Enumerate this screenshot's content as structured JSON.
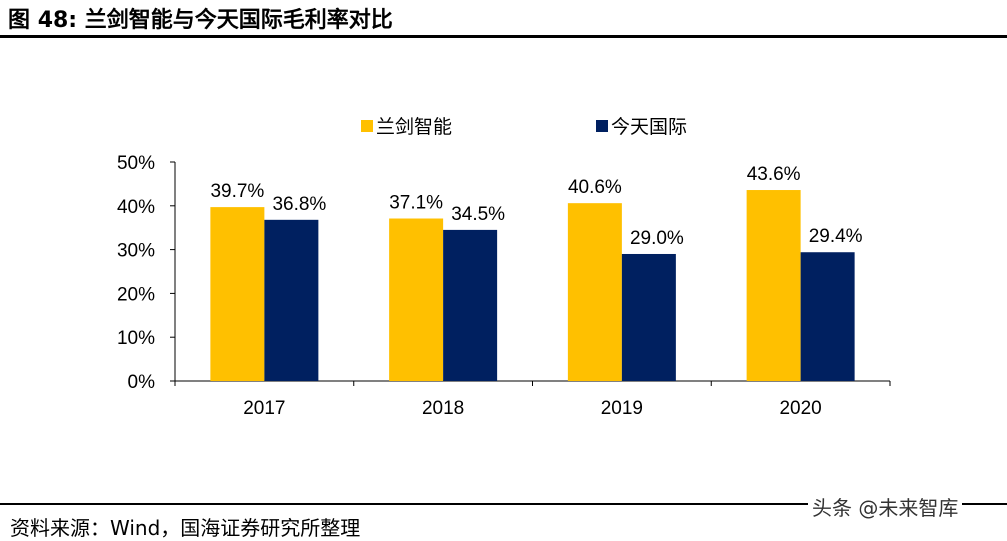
{
  "title": {
    "prefix": "图",
    "number": "48:",
    "text": "兰剑智能与今天国际毛利率对比"
  },
  "source": "资料来源：Wind，国海证券研究所整理",
  "watermark": "头条 @未来智库",
  "chart_data": {
    "type": "bar",
    "title": "",
    "xlabel": "",
    "ylabel": "",
    "categories": [
      "2017",
      "2018",
      "2019",
      "2020"
    ],
    "series": [
      {
        "name": "兰剑智能",
        "color": "#FFC000",
        "values": [
          39.7,
          37.1,
          40.6,
          43.6
        ],
        "labels": [
          "39.7%",
          "37.1%",
          "40.6%",
          "43.6%"
        ]
      },
      {
        "name": "今天国际",
        "color": "#002060",
        "values": [
          36.8,
          34.5,
          29.0,
          29.4
        ],
        "labels": [
          "36.8%",
          "34.5%",
          "29.0%",
          "29.4%"
        ]
      }
    ],
    "ylim": [
      0,
      50
    ],
    "yticks": [
      "0%",
      "10%",
      "20%",
      "30%",
      "40%",
      "50%"
    ],
    "grid": false,
    "legend": "top"
  }
}
